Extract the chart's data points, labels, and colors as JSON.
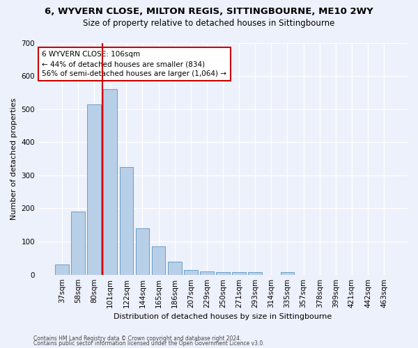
{
  "title1": "6, WYVERN CLOSE, MILTON REGIS, SITTINGBOURNE, ME10 2WY",
  "title2": "Size of property relative to detached houses in Sittingbourne",
  "xlabel": "Distribution of detached houses by size in Sittingbourne",
  "ylabel": "Number of detached properties",
  "categories": [
    "37sqm",
    "58sqm",
    "80sqm",
    "101sqm",
    "122sqm",
    "144sqm",
    "165sqm",
    "186sqm",
    "207sqm",
    "229sqm",
    "250sqm",
    "271sqm",
    "293sqm",
    "314sqm",
    "335sqm",
    "357sqm",
    "378sqm",
    "399sqm",
    "421sqm",
    "442sqm",
    "463sqm"
  ],
  "values": [
    30,
    190,
    515,
    560,
    325,
    140,
    85,
    40,
    13,
    10,
    8,
    8,
    8,
    0,
    8,
    0,
    0,
    0,
    0,
    0,
    0
  ],
  "bar_color": "#b8cfe8",
  "bar_edge_color": "#6a9fc8",
  "vline_color": "#cc0000",
  "annotation_text": "6 WYVERN CLOSE: 106sqm\n← 44% of detached houses are smaller (834)\n56% of semi-detached houses are larger (1,064) →",
  "annotation_box_color": "#ffffff",
  "annotation_box_edge": "#cc0000",
  "ylim": [
    0,
    700
  ],
  "yticks": [
    0,
    100,
    200,
    300,
    400,
    500,
    600,
    700
  ],
  "footer1": "Contains HM Land Registry data © Crown copyright and database right 2024.",
  "footer2": "Contains public sector information licensed under the Open Government Licence v3.0.",
  "background_color": "#edf1fb",
  "grid_color": "#ffffff",
  "title1_fontsize": 9.5,
  "title2_fontsize": 8.5,
  "xlabel_fontsize": 8,
  "ylabel_fontsize": 8,
  "tick_fontsize": 7.5,
  "annotation_fontsize": 7.5,
  "footer_fontsize": 5.5
}
